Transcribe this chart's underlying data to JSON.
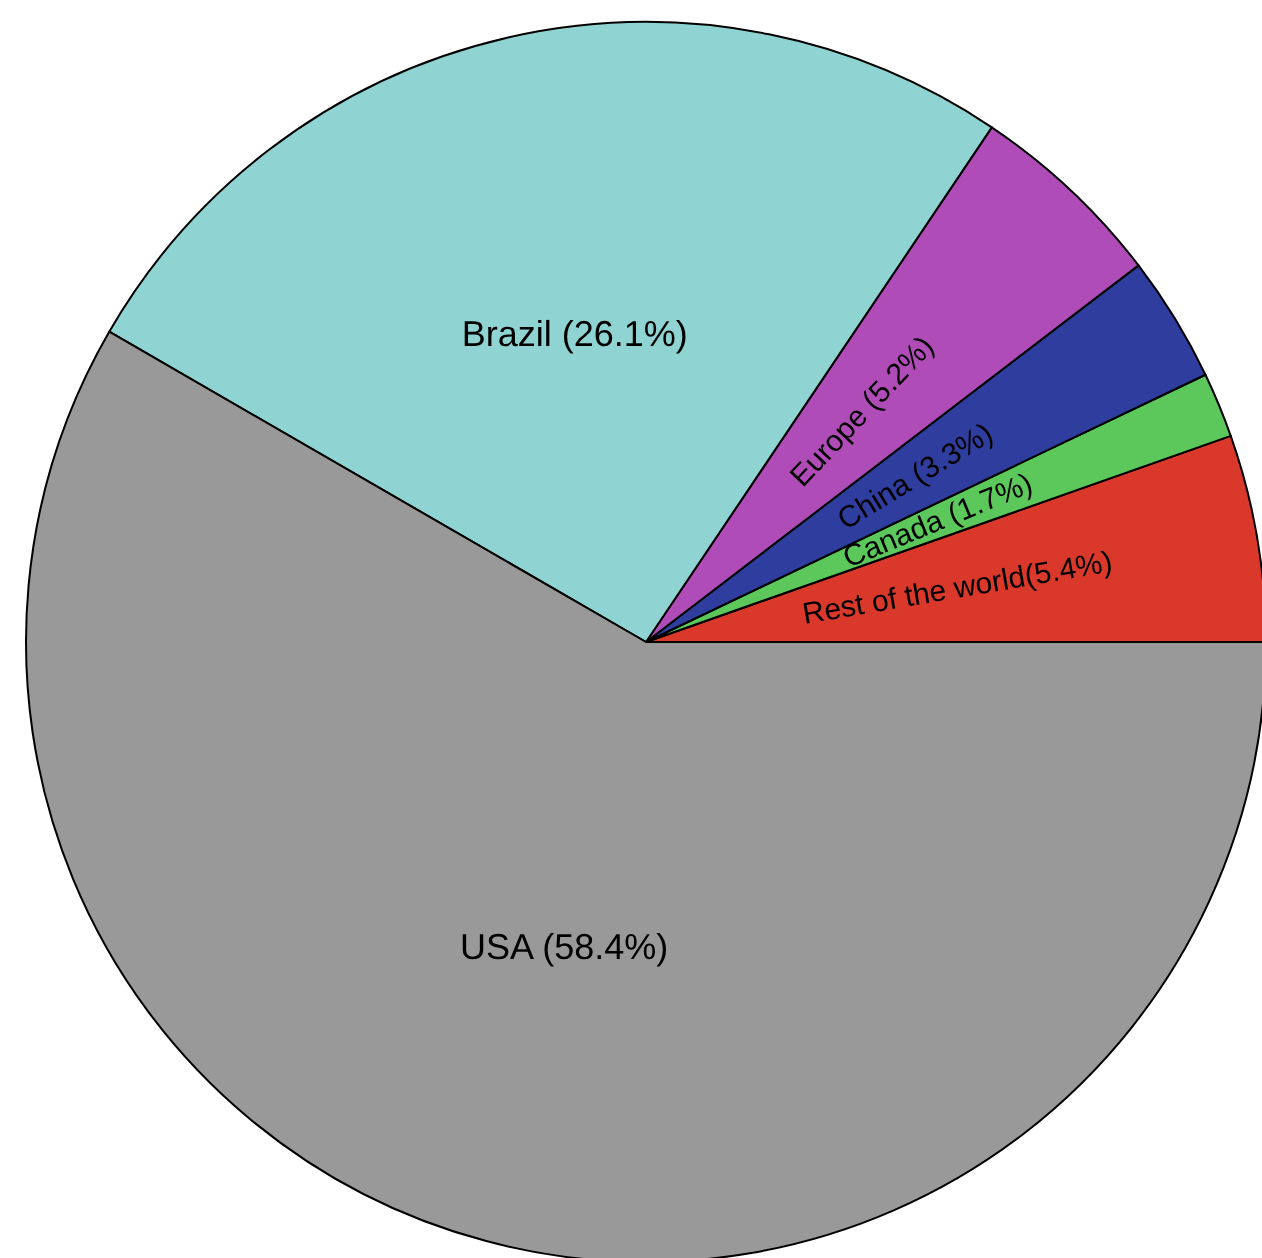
{
  "chart_data": {
    "type": "pie",
    "categories": [
      "Rest of the world(5.4%)",
      "Canada (1.7%)",
      "China (3.3%)",
      "Europe (5.2%)",
      "Brazil (26.1%)",
      "USA (58.4%)"
    ],
    "values": [
      5.4,
      1.7,
      3.3,
      5.2,
      26.1,
      58.4
    ],
    "colors": [
      "#d9382a",
      "#5cc85c",
      "#2e3d9e",
      "#b04cb8",
      "#8fd4d2",
      "#999999"
    ]
  }
}
